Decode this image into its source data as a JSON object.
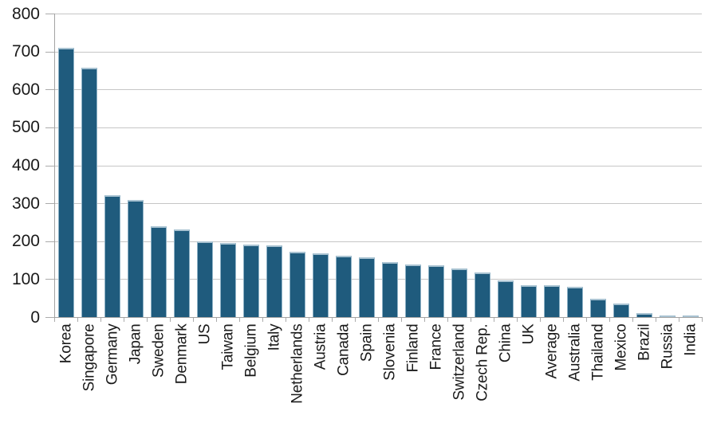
{
  "chart_data": {
    "type": "bar",
    "title": "",
    "xlabel": "",
    "ylabel": "",
    "categories": [
      "Korea",
      "Singapore",
      "Germany",
      "Japan",
      "Sweden",
      "Denmark",
      "US",
      "Taiwan",
      "Belgium",
      "Italy",
      "Netherlands",
      "Austria",
      "Canada",
      "Spain",
      "Slovenia",
      "Finland",
      "France",
      "Switzerland",
      "Czech Rep.",
      "China",
      "UK",
      "Average",
      "Australia",
      "Thailand",
      "Mexico",
      "Brazil",
      "Russia",
      "India"
    ],
    "values": [
      710,
      658,
      322,
      308,
      240,
      230,
      200,
      196,
      192,
      189,
      172,
      167,
      161,
      157,
      144,
      138,
      137,
      128,
      118,
      96,
      85,
      85,
      80,
      48,
      36,
      10,
      4,
      3
    ],
    "ylim": [
      0,
      800
    ],
    "yticks": [
      0,
      100,
      200,
      300,
      400,
      500,
      600,
      700,
      800
    ],
    "grid": "horizontal-only",
    "legend": "none",
    "colors": {
      "bar_fill": "#1f5b7d",
      "bar_edge_top": "#a9c3d2",
      "bar_edge_side": "#8fb2c6",
      "gridline": "#c6c6c6",
      "axis": "#a3a3a3",
      "tick": "#ababab",
      "text": "#1a1a1a",
      "background": "#ffffff"
    }
  }
}
